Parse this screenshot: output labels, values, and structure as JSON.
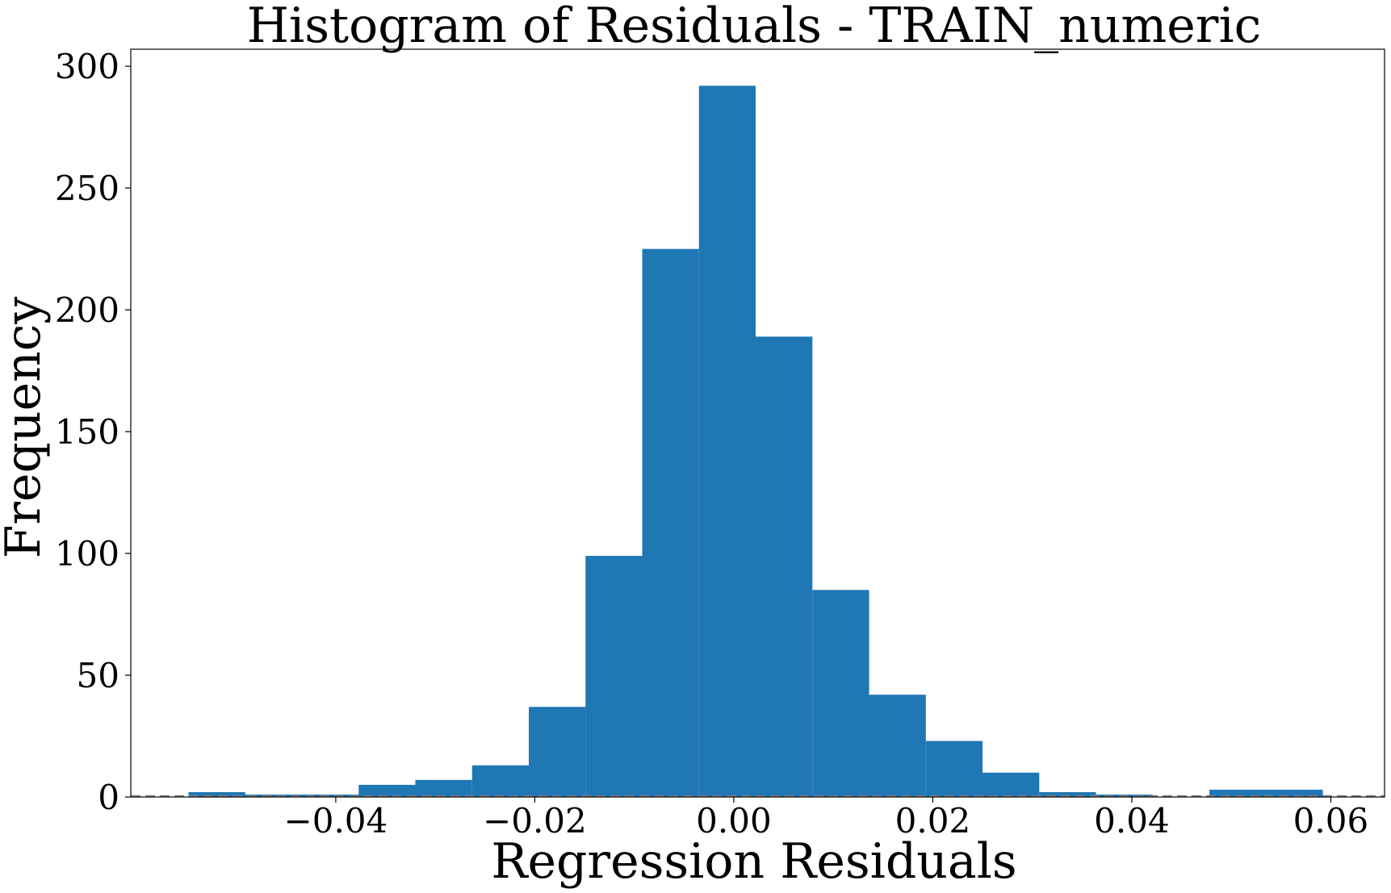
{
  "chart_data": {
    "type": "bar",
    "title": "Histogram of Residuals - TRAIN_numeric",
    "xlabel": "Regression Residuals",
    "ylabel": "Frequency",
    "xlim": [
      -0.0606,
      0.0654
    ],
    "ylim": [
      0,
      307
    ],
    "xticks": [
      -0.04,
      -0.02,
      0.0,
      0.02,
      0.04,
      0.06
    ],
    "xtick_labels": [
      "−0.04",
      "−0.02",
      "0.00",
      "0.02",
      "0.04",
      "0.06"
    ],
    "yticks": [
      0,
      50,
      100,
      150,
      200,
      250,
      300
    ],
    "ytick_labels": [
      "0",
      "50",
      "100",
      "150",
      "200",
      "250",
      "300"
    ],
    "bins": [
      {
        "x0": -0.0548,
        "x1": -0.0491,
        "count": 2
      },
      {
        "x0": -0.0491,
        "x1": -0.0434,
        "count": 1
      },
      {
        "x0": -0.0434,
        "x1": -0.0377,
        "count": 1
      },
      {
        "x0": -0.0377,
        "x1": -0.032,
        "count": 5
      },
      {
        "x0": -0.032,
        "x1": -0.0263,
        "count": 7
      },
      {
        "x0": -0.0263,
        "x1": -0.0206,
        "count": 13
      },
      {
        "x0": -0.0206,
        "x1": -0.0149,
        "count": 37
      },
      {
        "x0": -0.0149,
        "x1": -0.0092,
        "count": 99
      },
      {
        "x0": -0.0092,
        "x1": -0.0035,
        "count": 225
      },
      {
        "x0": -0.0035,
        "x1": 0.0022,
        "count": 292
      },
      {
        "x0": 0.0022,
        "x1": 0.0079,
        "count": 189
      },
      {
        "x0": 0.0079,
        "x1": 0.0136,
        "count": 85
      },
      {
        "x0": 0.0136,
        "x1": 0.0193,
        "count": 42
      },
      {
        "x0": 0.0193,
        "x1": 0.025,
        "count": 23
      },
      {
        "x0": 0.025,
        "x1": 0.0307,
        "count": 10
      },
      {
        "x0": 0.0307,
        "x1": 0.0364,
        "count": 2
      },
      {
        "x0": 0.0364,
        "x1": 0.0421,
        "count": 1
      },
      {
        "x0": 0.0421,
        "x1": 0.0478,
        "count": 0
      },
      {
        "x0": 0.0478,
        "x1": 0.0535,
        "count": 3
      },
      {
        "x0": 0.0535,
        "x1": 0.0592,
        "count": 3
      }
    ],
    "reference_line": {
      "y": 0,
      "style": "dashed",
      "color": "#808080"
    },
    "bar_color": "#1f77b4",
    "grid": false,
    "legend": "none"
  }
}
